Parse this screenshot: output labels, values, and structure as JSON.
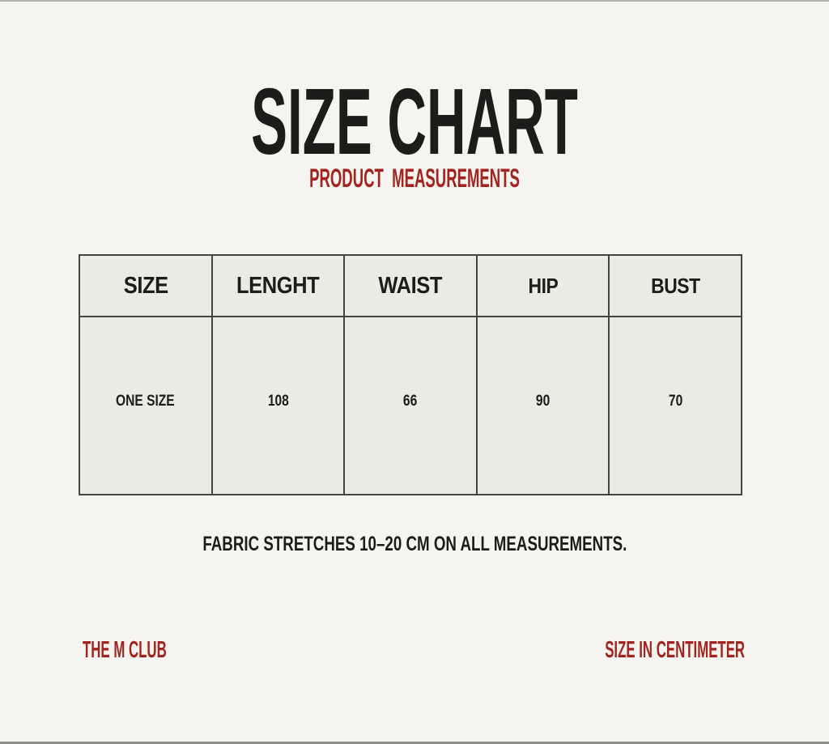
{
  "page": {
    "title": "SIZE CHART",
    "subtitle": "PRODUCT  MEASUREMENTS",
    "note": "FABRIC STRETCHES 10–20 CM ON ALL MEASUREMENTS.",
    "footer_left": "THE M CLUB",
    "footer_right": "SIZE IN CENTIMETER"
  },
  "size_table": {
    "columns": [
      "SIZE",
      "LENGHT",
      "WAIST",
      "HIP",
      "BUST"
    ],
    "row": [
      "ONE SIZE",
      "108",
      "66",
      "90",
      "70"
    ]
  },
  "colors": {
    "accent_red": "#a3241f",
    "text_black": "#1c1c1a",
    "page_background": "#f5f4f0",
    "cell_background": "#ebeae3",
    "table_border": "#45453f"
  }
}
